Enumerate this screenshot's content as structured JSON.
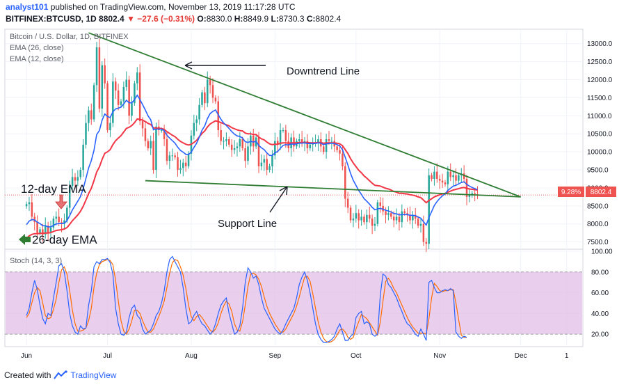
{
  "header": {
    "user": "analyst101",
    "published_text": " published on TradingView.com, November 13, 2019 11:17:28 UTC",
    "symbol": "BITFINEX:BTCUSD, 1D",
    "last": "8802.4",
    "change": "−27.6 (−0.31%)",
    "o_label": "O:",
    "o_value": "8830.0",
    "h_label": "H:",
    "h_value": "8849.9",
    "l_label": "L:",
    "l_value": "8730.3",
    "c_label": "C:",
    "c_value": "8802.4"
  },
  "legend": {
    "title": "Bitcoin / U.S. Dollar, 1D, BITFINEX",
    "ema26": "EMA (26, close)",
    "ema12": "EMA (12, close)",
    "stoch": "Stoch (14, 3, 3)"
  },
  "annotations": {
    "downtrend": "Downtrend Line",
    "support": "Support Line",
    "ema12": "12-day EMA",
    "ema26": "26-day EMA"
  },
  "price_tags": {
    "percent": "9.28%",
    "last": "8802.4"
  },
  "footer": {
    "created_with": "Created with",
    "brand": "TradingView"
  },
  "colors": {
    "up": "#26a69a",
    "down": "#ef5350",
    "ema12": "#2962ff",
    "ema26": "#f23645",
    "trend": "#2e7d32",
    "stoch_k": "#2962ff",
    "stoch_d": "#ff6d00",
    "stoch_band": "#e1bee7"
  },
  "chart_data": [
    {
      "type": "candlestick",
      "title": "Bitcoin / U.S. Dollar, 1D, BITFINEX",
      "ylim": [
        7300,
        13400
      ],
      "y_ticks": [
        "7500.0",
        "8000.0",
        "8500.0",
        "9000.0",
        "9500.0",
        "10000.0",
        "10500.0",
        "11000.0",
        "11500.0",
        "12000.0",
        "12500.0",
        "13000.0"
      ],
      "x_ticks": [
        {
          "label": "Jun",
          "day": 0
        },
        {
          "label": "Jul",
          "day": 30
        },
        {
          "label": "Aug",
          "day": 61
        },
        {
          "label": "Sep",
          "day": 92
        },
        {
          "label": "Oct",
          "day": 122
        },
        {
          "label": "Nov",
          "day": 153
        },
        {
          "label": "Dec",
          "day": 183
        },
        {
          "label": "1",
          "day": 200
        }
      ],
      "x_range": [
        -8,
        206
      ],
      "close": [
        8550,
        8600,
        8200,
        8050,
        7750,
        7850,
        7700,
        7950,
        7750,
        7900,
        8150,
        8200,
        8050,
        8000,
        8100,
        8450,
        9050,
        9300,
        9200,
        9300,
        9500,
        10200,
        10800,
        11150,
        10900,
        11850,
        12900,
        11200,
        12400,
        11900,
        10600,
        10800,
        11950,
        11700,
        11300,
        11400,
        11800,
        12000,
        11000,
        11350,
        11900,
        12200,
        10850,
        10650,
        10300,
        10100,
        10300,
        9500,
        10700,
        10600,
        10600,
        10350,
        9750,
        9900,
        9900,
        9850,
        9500,
        9550,
        9700,
        9600,
        9950,
        10450,
        10800,
        10900,
        11300,
        11650,
        11350,
        12000,
        11850,
        11500,
        11400,
        10600,
        10300,
        10300,
        10350,
        10200,
        10050,
        10100,
        10150,
        10350,
        10100,
        9750,
        10150,
        10450,
        10150,
        10400,
        9600,
        9700,
        9800,
        9500,
        9600,
        9900,
        10300,
        10200,
        10600,
        10600,
        10300,
        10100,
        10400,
        10150,
        10300,
        10350,
        10250,
        10300,
        10100,
        10200,
        10250,
        10250,
        10350,
        10150,
        10000,
        10350,
        10300,
        10300,
        10150,
        10050,
        9950,
        9600,
        8700,
        8450,
        8100,
        8150,
        8300,
        8100,
        8200,
        8050,
        8250,
        8150,
        7950,
        8000,
        8600,
        8500,
        8350,
        8250,
        8300,
        8200,
        8100,
        8200,
        8050,
        8350,
        8300,
        8250,
        8100,
        8250,
        8150,
        7950,
        8000,
        7500,
        7450,
        9350,
        9250,
        9450,
        9250,
        9200,
        9150,
        9100,
        9450,
        9300,
        9350,
        9200,
        9350,
        9400,
        9250,
        8750,
        8800,
        8850,
        8820,
        8800
      ],
      "ema12": [
        7980,
        8080,
        8120,
        8110,
        8050,
        8010,
        7950,
        7950,
        7920,
        7920,
        7960,
        8000,
        8010,
        8010,
        8020,
        8090,
        8230,
        8390,
        8510,
        8630,
        8760,
        8980,
        9260,
        9550,
        9760,
        10040,
        10480,
        10590,
        10880,
        11050,
        10980,
        10950,
        11110,
        11190,
        11210,
        11240,
        11330,
        11430,
        11360,
        11360,
        11450,
        11570,
        11450,
        11310,
        11160,
        11000,
        10890,
        10610,
        10630,
        10630,
        10630,
        10590,
        10460,
        10380,
        10310,
        10240,
        10130,
        10040,
        9990,
        9930,
        9930,
        9990,
        10120,
        10240,
        10410,
        10600,
        10720,
        10920,
        11060,
        11120,
        11160,
        11030,
        10900,
        10800,
        10730,
        10650,
        10560,
        10490,
        10440,
        10430,
        10380,
        10280,
        10260,
        10290,
        10270,
        10290,
        10180,
        10110,
        10060,
        9970,
        9900,
        9900,
        9970,
        10010,
        10100,
        10180,
        10200,
        10190,
        10220,
        10210,
        10220,
        10240,
        10240,
        10250,
        10230,
        10230,
        10230,
        10230,
        10250,
        10240,
        10200,
        10220,
        10230,
        10240,
        10230,
        10200,
        10160,
        10060,
        9850,
        9630,
        9400,
        9210,
        9070,
        8930,
        8820,
        8700,
        8630,
        8550,
        8460,
        8390,
        8420,
        8430,
        8410,
        8380,
        8360,
        8330,
        8290,
        8280,
        8250,
        8260,
        8260,
        8260,
        8240,
        8240,
        8230,
        8190,
        8160,
        8060,
        7970,
        8180,
        8340,
        8510,
        8620,
        8710,
        8780,
        8830,
        8930,
        8990,
        9050,
        9070,
        9110,
        9150,
        9170,
        9100,
        9050,
        9010,
        8980,
        8950
      ],
      "ema26": [
        7600,
        7670,
        7710,
        7730,
        7730,
        7740,
        7740,
        7750,
        7750,
        7760,
        7790,
        7820,
        7830,
        7840,
        7860,
        7900,
        7990,
        8090,
        8170,
        8250,
        8350,
        8490,
        8660,
        8840,
        8990,
        9200,
        9440,
        9580,
        9790,
        9960,
        10000,
        10060,
        10200,
        10310,
        10380,
        10450,
        10550,
        10650,
        10680,
        10730,
        10810,
        10910,
        10900,
        10880,
        10840,
        10790,
        10760,
        10660,
        10660,
        10650,
        10650,
        10620,
        10560,
        10510,
        10460,
        10420,
        10350,
        10290,
        10250,
        10210,
        10190,
        10210,
        10260,
        10320,
        10420,
        10510,
        10580,
        10690,
        10770,
        10820,
        10860,
        10840,
        10810,
        10780,
        10750,
        10720,
        10670,
        10640,
        10610,
        10590,
        10580,
        10520,
        10500,
        10500,
        10480,
        10480,
        10410,
        10360,
        10330,
        10270,
        10220,
        10200,
        10210,
        10210,
        10240,
        10250,
        10250,
        10240,
        10250,
        10250,
        10250,
        10260,
        10260,
        10260,
        10260,
        10250,
        10250,
        10250,
        10260,
        10260,
        10240,
        10250,
        10250,
        10250,
        10250,
        10240,
        10220,
        10170,
        10060,
        9950,
        9810,
        9690,
        9590,
        9490,
        9420,
        9330,
        9270,
        9200,
        9130,
        9070,
        9060,
        9050,
        9020,
        8990,
        8970,
        8940,
        8900,
        8880,
        8850,
        8850,
        8840,
        8830,
        8810,
        8800,
        8780,
        8750,
        8730,
        8660,
        8590,
        8650,
        8700,
        8750,
        8780,
        8810,
        8830,
        8850,
        8880,
        8910,
        8940,
        8960,
        8980,
        9000,
        9010,
        8990,
        8970,
        8960,
        8950,
        8940
      ],
      "downtrend_line": [
        {
          "day": 23,
          "price": 13300
        },
        {
          "day": 183,
          "price": 8750
        }
      ],
      "support_line": [
        {
          "day": 44,
          "price": 9200
        },
        {
          "day": 183,
          "price": 8750
        }
      ],
      "last_price": 8802.4
    },
    {
      "type": "line",
      "title": "Stoch (14, 3, 3)",
      "ylim": [
        8,
        102
      ],
      "y_ticks": [
        "20.00",
        "40.00",
        "60.00",
        "80.00",
        "100.00"
      ],
      "band": [
        20,
        80
      ],
      "k": [
        38,
        45,
        60,
        72,
        63,
        48,
        35,
        30,
        40,
        38,
        55,
        70,
        86,
        88,
        80,
        62,
        40,
        28,
        22,
        20,
        28,
        25,
        26,
        48,
        62,
        85,
        90,
        88,
        92,
        92,
        93,
        89,
        78,
        45,
        30,
        20,
        19,
        22,
        36,
        45,
        48,
        38,
        35,
        25,
        20,
        22,
        24,
        30,
        38,
        42,
        50,
        62,
        80,
        92,
        95,
        90,
        85,
        80,
        65,
        45,
        30,
        32,
        38,
        42,
        35,
        30,
        28,
        24,
        20,
        23,
        30,
        40,
        48,
        52,
        55,
        40,
        30,
        20,
        22,
        28,
        45,
        70,
        84,
        80,
        74,
        76,
        68,
        55,
        45,
        40,
        35,
        30,
        25,
        22,
        20,
        24,
        30,
        35,
        40,
        45,
        55,
        68,
        75,
        80,
        72,
        60,
        45,
        30,
        20,
        15,
        12,
        12,
        13,
        15,
        18,
        25,
        30,
        22,
        14,
        14,
        18,
        20,
        36,
        40,
        42,
        30,
        32,
        30,
        20,
        18,
        20,
        58,
        78,
        76,
        68,
        65,
        60,
        55,
        48,
        42,
        35,
        30,
        28,
        24,
        20,
        18,
        25,
        20,
        14,
        70,
        72,
        65,
        60,
        60,
        62,
        63,
        62,
        64,
        62,
        22,
        18,
        16,
        18,
        17
      ],
      "d": [
        36,
        40,
        50,
        60,
        65,
        62,
        50,
        38,
        35,
        36,
        44,
        54,
        70,
        82,
        85,
        78,
        62,
        43,
        30,
        23,
        23,
        24,
        26,
        33,
        45,
        65,
        79,
        87,
        90,
        91,
        92,
        91,
        87,
        72,
        52,
        33,
        23,
        20,
        25,
        33,
        43,
        43,
        40,
        33,
        27,
        22,
        22,
        25,
        31,
        37,
        44,
        52,
        65,
        79,
        89,
        92,
        91,
        85,
        77,
        64,
        48,
        37,
        33,
        37,
        39,
        36,
        32,
        28,
        24,
        22,
        25,
        31,
        40,
        47,
        52,
        49,
        42,
        30,
        24,
        23,
        32,
        48,
        66,
        78,
        79,
        77,
        73,
        66,
        56,
        47,
        40,
        35,
        30,
        26,
        22,
        22,
        25,
        30,
        35,
        40,
        47,
        56,
        66,
        75,
        76,
        71,
        59,
        45,
        32,
        22,
        16,
        13,
        12,
        13,
        15,
        19,
        24,
        25,
        22,
        17,
        15,
        17,
        25,
        32,
        39,
        37,
        35,
        31,
        27,
        23,
        19,
        32,
        52,
        71,
        74,
        70,
        64,
        60,
        54,
        48,
        42,
        36,
        31,
        27,
        24,
        21,
        21,
        21,
        20,
        35,
        55,
        69,
        66,
        62,
        61,
        62,
        62,
        63,
        63,
        50,
        34,
        19,
        17,
        17
      ]
    }
  ]
}
